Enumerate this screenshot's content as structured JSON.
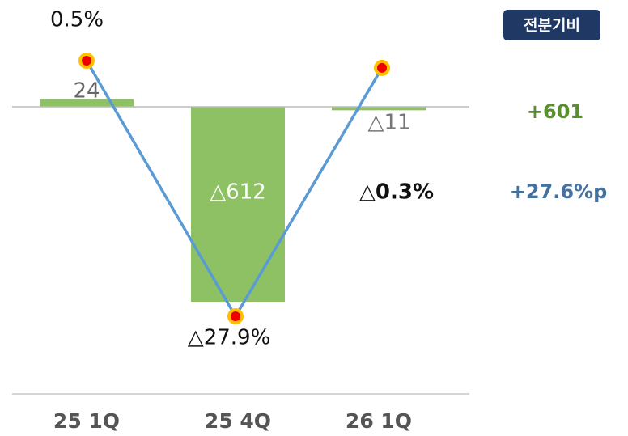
{
  "chart_data": {
    "type": "bar",
    "categories": [
      "25 1Q",
      "25 4Q",
      "26 1Q"
    ],
    "bars": {
      "values": [
        24,
        -612,
        -11
      ],
      "value_labels": [
        "24",
        "△612",
        "△11"
      ],
      "color": "#8dc163"
    },
    "line": {
      "values": [
        0.5,
        -27.9,
        -0.3
      ],
      "value_labels": [
        "0.5%",
        "△27.9%",
        "△0.3%"
      ],
      "color": "#5b9bd5"
    },
    "badge": "전분기비",
    "annotations": [
      "+601",
      "+27.6%p"
    ]
  }
}
